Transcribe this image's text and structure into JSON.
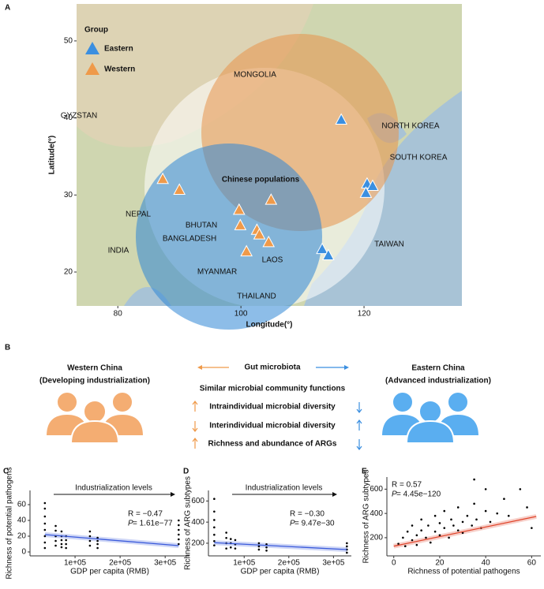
{
  "chart_data": [
    {
      "type": "scatter",
      "label": "A",
      "marker": "triangle",
      "xlabel": "Longitude(°)",
      "ylabel": "Latitude(°)",
      "xlim": [
        73.3,
        135.9
      ],
      "ylim": [
        15.6,
        54.8
      ],
      "xticks": [
        80,
        100,
        120
      ],
      "yticks": [
        20,
        30,
        40,
        50
      ],
      "legend_title": "Group",
      "legend": "top-left",
      "annotation": "Chinese populations",
      "map_labels": [
        "MONGOLIA",
        "NORTH KOREA",
        "SOUTH KOREA",
        "GYZSTAN",
        "NEPAL",
        "BHUTAN",
        "BANGLADESH",
        "INDIA",
        "MYANMAR",
        "LAOS",
        "THAILAND",
        "TAIWAN"
      ],
      "series": [
        {
          "name": "Eastern",
          "color": "#3b8fe0",
          "x": [
            116.3,
            120.5,
            121.4,
            120.3,
            113.2,
            114.2
          ],
          "y": [
            39.7,
            31.4,
            31.1,
            30.2,
            22.9,
            22.1
          ]
        },
        {
          "name": "Western",
          "color": "#ef9a4a",
          "x": [
            87.3,
            90,
            99.7,
            99.9,
            102.6,
            103,
            104.5,
            100.9,
            104.9
          ],
          "y": [
            32,
            30.6,
            28,
            26,
            25.4,
            24.8,
            23.8,
            22.6,
            29.3
          ]
        }
      ]
    },
    {
      "type": "scatter",
      "label": "C",
      "marker": "dot",
      "xlabel": "GDP per capita (RMB)",
      "ylabel": "Richness of potential pathogens",
      "xlim": [
        0,
        354000
      ],
      "ylim": [
        -5,
        78
      ],
      "xticks": [
        {
          "value": 100000,
          "label": "1e+05"
        },
        {
          "value": 200000,
          "label": "2e+05"
        },
        {
          "value": 300000,
          "label": "3e+05"
        }
      ],
      "yticks": [
        0,
        20,
        40,
        60
      ],
      "annotation": "Industrialization levels",
      "stats": {
        "r": "R = −0.47",
        "p_label": "P",
        "p_value": " = 1.61e−77"
      },
      "series": [
        {
          "color": "#000000",
          "x": [
            33000,
            33000,
            33000,
            33000,
            33000,
            33000,
            33000,
            33000,
            57000,
            57000,
            57000,
            57000,
            57000,
            70000,
            70000,
            70000,
            70000,
            70000,
            80000,
            80000,
            80000,
            80000,
            133000,
            133000,
            133000,
            133000,
            150000,
            150000,
            150000,
            150000,
            330000,
            330000,
            330000,
            330000,
            330000,
            330000
          ],
          "y": [
            5,
            12,
            20,
            28,
            36,
            45,
            55,
            62,
            8,
            14,
            20,
            27,
            33,
            6,
            10,
            15,
            20,
            26,
            5,
            10,
            15,
            20,
            8,
            14,
            20,
            26,
            5,
            10,
            14,
            18,
            10,
            16,
            22,
            28,
            34,
            40
          ]
        }
      ],
      "fit": {
        "color": "#3b5bdb",
        "x": [
          33000,
          330000
        ],
        "y": [
          22,
          8
        ]
      }
    },
    {
      "type": "scatter",
      "label": "D",
      "marker": "dot",
      "xlabel": "GDP per capita (RMB)",
      "ylabel": "Richness of ARG subtypes",
      "xlim": [
        20000,
        340000
      ],
      "ylim": [
        80,
        700
      ],
      "xticks": [
        {
          "value": 100000,
          "label": "1e+05"
        },
        {
          "value": 200000,
          "label": "2e+05"
        },
        {
          "value": 300000,
          "label": "3e+05"
        }
      ],
      "yticks": [
        200,
        400,
        600
      ],
      "annotation": "Industrialization levels",
      "stats": {
        "r": "R = −0.30",
        "p_label": "P",
        "p_value": " = 9.47e−30"
      },
      "series": [
        {
          "color": "#000000",
          "x": [
            33000,
            33000,
            33000,
            33000,
            33000,
            33000,
            33000,
            60000,
            60000,
            60000,
            60000,
            70000,
            70000,
            70000,
            80000,
            80000,
            80000,
            133000,
            133000,
            133000,
            150000,
            150000,
            150000,
            330000,
            330000,
            330000,
            330000
          ],
          "y": [
            180,
            220,
            280,
            350,
            420,
            500,
            620,
            150,
            200,
            250,
            300,
            160,
            200,
            240,
            150,
            190,
            230,
            140,
            170,
            200,
            130,
            160,
            190,
            110,
            140,
            170,
            200
          ]
        }
      ],
      "fit": {
        "color": "#3b5bdb",
        "x": [
          33000,
          330000
        ],
        "y": [
          205,
          140
        ]
      }
    },
    {
      "type": "scatter",
      "label": "E",
      "marker": "dot",
      "xlabel": "Richness of potential pathogens",
      "ylabel": "Richness of ARG subtypes",
      "xlim": [
        -3,
        64
      ],
      "ylim": [
        50,
        700
      ],
      "xticks": [
        0,
        20,
        40,
        60
      ],
      "yticks": [
        200,
        400,
        600
      ],
      "stats": {
        "r": "R = 0.57",
        "p_label": "P",
        "p_value": " = 4.45e−120"
      },
      "series": [
        {
          "color": "#000000",
          "x": [
            2,
            4,
            5,
            6,
            8,
            8,
            10,
            10,
            12,
            12,
            14,
            15,
            16,
            18,
            18,
            20,
            20,
            22,
            22,
            24,
            25,
            26,
            28,
            28,
            30,
            30,
            32,
            34,
            35,
            36,
            38,
            40,
            40,
            42,
            45,
            48,
            50,
            55,
            58,
            60,
            35
          ],
          "y": [
            150,
            200,
            130,
            250,
            180,
            300,
            220,
            140,
            260,
            350,
            200,
            300,
            160,
            250,
            380,
            220,
            320,
            280,
            420,
            200,
            350,
            300,
            260,
            450,
            330,
            240,
            380,
            300,
            480,
            350,
            280,
            420,
            600,
            330,
            400,
            520,
            380,
            600,
            450,
            280,
            680
          ]
        }
      ],
      "fit": {
        "color": "#e0452b",
        "x": [
          0,
          62
        ],
        "y": [
          130,
          375
        ]
      }
    }
  ],
  "diagram": {
    "label": "B",
    "left_title": "Western China",
    "left_subtitle": "(Developing industrialization)",
    "center_title": "Gut microbiota",
    "right_title": "Eastern China",
    "right_subtitle": "(Advanced industrialization)",
    "rows": [
      "Similar microbial community functions",
      "Intraindividual microbial diversity",
      "Interindividual microbial diversity",
      "Richness and abundance of ARGs"
    ]
  }
}
